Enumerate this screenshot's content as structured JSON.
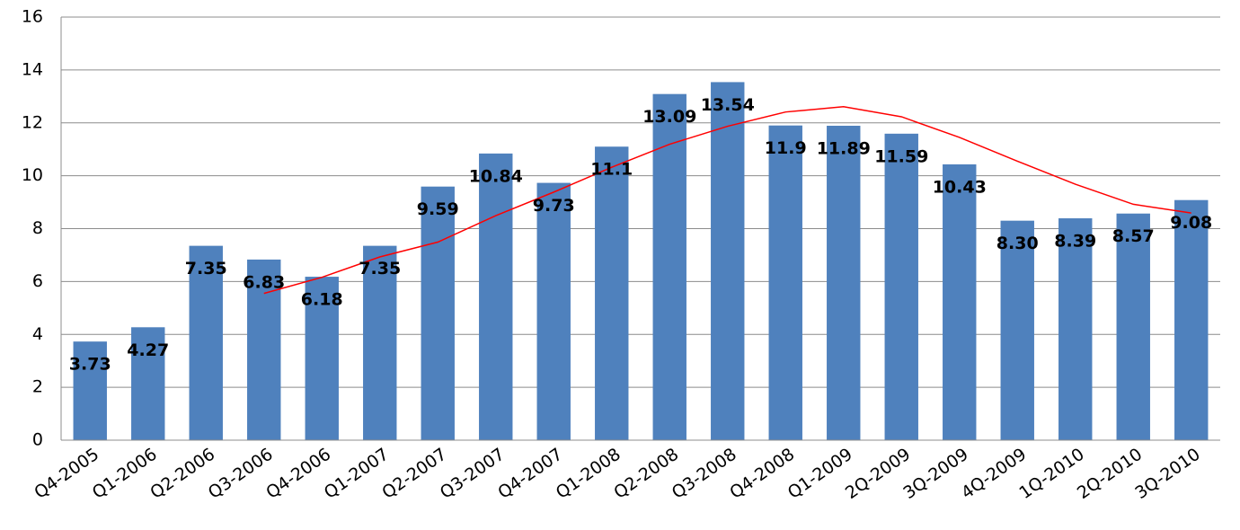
{
  "chart_data": {
    "type": "bar",
    "categories": [
      "Q4-2005",
      "Q1-2006",
      "Q2-2006",
      "Q3-2006",
      "Q4-2006",
      "Q1-2007",
      "Q2-2007",
      "Q3-2007",
      "Q4-2007",
      "Q1-2008",
      "Q2-2008",
      "Q3-2008",
      "Q4-2008",
      "Q1-2009",
      "2Q-2009",
      "3Q-2009",
      "4Q-2009",
      "1Q-2010",
      "2Q-2010",
      "3Q-2010"
    ],
    "values": [
      3.73,
      4.27,
      7.35,
      6.83,
      6.18,
      7.35,
      9.59,
      10.84,
      9.73,
      11.1,
      13.09,
      13.54,
      11.9,
      11.89,
      11.59,
      10.43,
      8.3,
      8.39,
      8.57,
      9.08
    ],
    "value_labels": [
      "3.73",
      "4.27",
      "7.35",
      "6.83",
      "6.18",
      "7.35",
      "9.59",
      "10.84",
      "9.73",
      "11.1",
      "13.09",
      "13.54",
      "11.9",
      "11.89",
      "11.59",
      "10.43",
      "8.30",
      "8.39",
      "8.57",
      "9.08"
    ],
    "color": "#4f81bd",
    "trend": {
      "color": "#ff0000",
      "values": [
        null,
        null,
        null,
        5.55,
        6.16,
        6.93,
        7.49,
        8.49,
        9.38,
        10.32,
        11.19,
        11.87,
        12.41,
        12.61,
        12.23,
        11.45,
        10.55,
        9.68,
        8.92,
        8.59
      ]
    },
    "ylim": [
      0,
      16
    ],
    "yticks": [
      0,
      2,
      4,
      6,
      8,
      10,
      12,
      14,
      16
    ],
    "grid": true
  }
}
